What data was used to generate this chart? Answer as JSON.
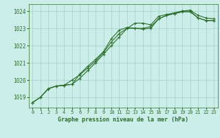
{
  "title": "Graphe pression niveau de la mer (hPa)",
  "bg_color": "#cceee8",
  "grid_color": "#aad8d0",
  "line_color": "#2d6e2d",
  "xlim": [
    -0.5,
    23.5
  ],
  "ylim": [
    1018.4,
    1024.4
  ],
  "yticks": [
    1019,
    1020,
    1021,
    1022,
    1023,
    1024
  ],
  "xticks": [
    0,
    1,
    2,
    3,
    4,
    5,
    6,
    7,
    8,
    9,
    10,
    11,
    12,
    13,
    14,
    15,
    16,
    17,
    18,
    19,
    20,
    21,
    22,
    23
  ],
  "series": [
    [
      1018.7,
      1019.0,
      1019.5,
      1019.65,
      1019.7,
      1019.75,
      1020.35,
      1020.8,
      1021.2,
      1021.65,
      1022.4,
      1022.9,
      1023.05,
      1023.0,
      1022.95,
      1023.0,
      1023.55,
      1023.75,
      1023.85,
      1024.0,
      1024.05,
      1023.75,
      1023.6,
      1023.55
    ],
    [
      1018.7,
      1019.0,
      1019.5,
      1019.65,
      1019.7,
      1019.75,
      1020.1,
      1020.55,
      1021.0,
      1021.5,
      1022.0,
      1022.5,
      1023.0,
      1023.3,
      1023.3,
      1023.2,
      1023.7,
      1023.8,
      1023.9,
      1024.0,
      1024.0,
      1023.6,
      1023.45,
      1023.45
    ],
    [
      1018.7,
      1019.0,
      1019.5,
      1019.65,
      1019.7,
      1020.0,
      1020.3,
      1020.7,
      1021.1,
      1021.6,
      1022.2,
      1022.7,
      1023.0,
      1023.0,
      1023.0,
      1023.1,
      1023.55,
      1023.75,
      1023.85,
      1023.95,
      1023.95,
      1023.6,
      1023.45,
      1023.45
    ]
  ]
}
